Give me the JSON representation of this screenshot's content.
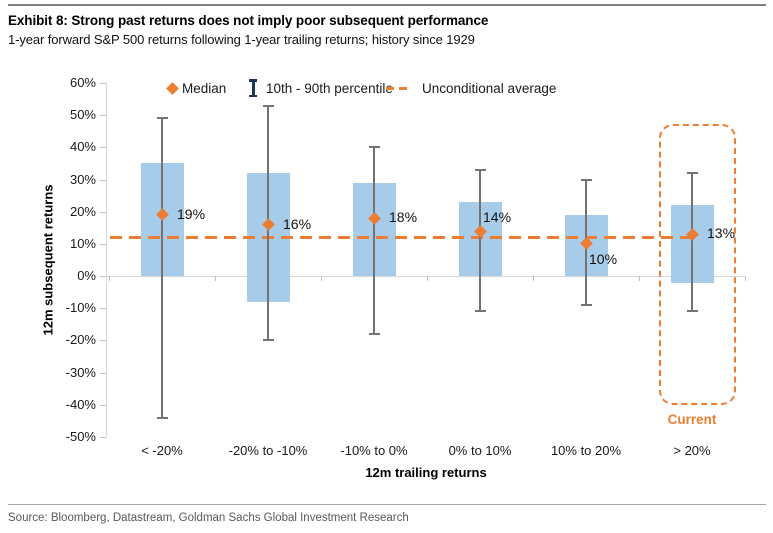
{
  "header": {
    "title": "Exhibit 8: Strong past returns does not imply poor subsequent performance",
    "subtitle": "1-year forward S&P 500 returns following 1-year trailing returns; history since 1929"
  },
  "legend": {
    "median": "Median",
    "percentile": "10th - 90th percentile",
    "average": "Unconditional average"
  },
  "chart_data": {
    "type": "bar",
    "title": "Exhibit 8: Strong past returns does not imply poor subsequent performance",
    "subtitle": "1-year forward S&P 500 returns following 1-year trailing returns; history since 1929",
    "categories": [
      "< -20%",
      "-20% to -10%",
      "-10% to 0%",
      "0% to 10%",
      "10% to 20%",
      "> 20%"
    ],
    "series": [
      {
        "name": "Range bar",
        "type": "column-range",
        "low": [
          0,
          -8,
          0,
          0,
          0,
          -2
        ],
        "high": [
          35,
          32,
          29,
          23,
          19,
          22
        ]
      },
      {
        "name": "10th - 90th percentile",
        "type": "errorbar",
        "low": [
          -44,
          -20,
          -18,
          -11,
          -9,
          -11
        ],
        "high": [
          49,
          53,
          40,
          33,
          30,
          32
        ]
      },
      {
        "name": "Median",
        "type": "point",
        "values": [
          19,
          16,
          18,
          14,
          10,
          13
        ]
      }
    ],
    "median_labels": [
      "19%",
      "16%",
      "18%",
      "14%",
      "10%",
      "13%"
    ],
    "median_label_positions": [
      "right",
      "right",
      "right",
      "above-right",
      "below-right",
      "right"
    ],
    "unconditional_average": 12,
    "ylim": [
      -50,
      60
    ],
    "ytick_step": 10,
    "ytick_suffix": "%",
    "xlabel": "12m trailing returns",
    "ylabel": "12m subsequent returns",
    "legend_position": "top",
    "grid": "zero-line-only",
    "annotation": {
      "label": "Current",
      "category_index": 5
    }
  },
  "footer": {
    "source": "Source: Bloomberg, Datastream, Goldman Sachs Global Investment Research"
  },
  "colors": {
    "bar": "#A7CCEA",
    "orange": "#ED7D31",
    "whisker": "#737373",
    "ibeam": "#1F3455",
    "axis": "#D9D9D9",
    "tick": "#BFBFBF"
  }
}
